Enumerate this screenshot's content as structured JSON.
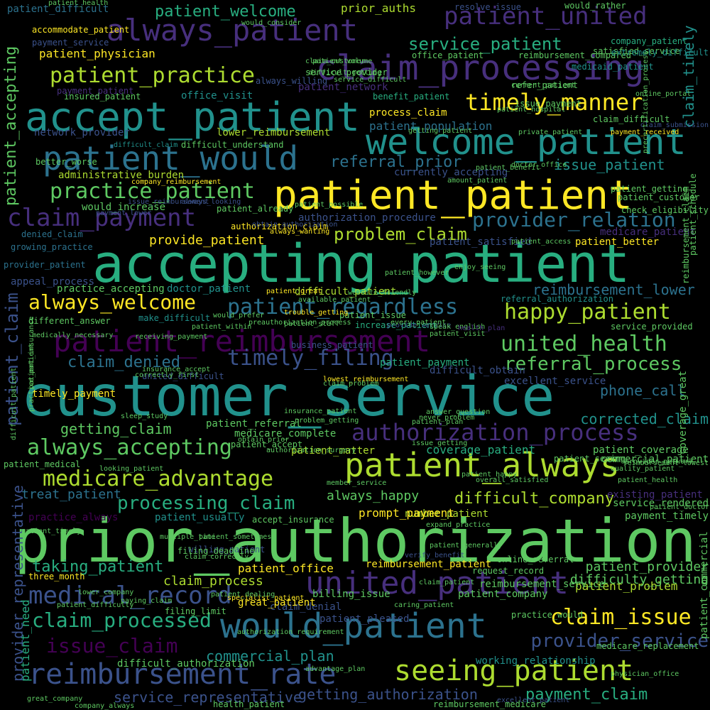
{
  "background": "#000000",
  "palette": [
    "#440154",
    "#472f7d",
    "#3b528b",
    "#2c728e",
    "#21918c",
    "#28ae80",
    "#5ec962",
    "#addc30",
    "#fde725"
  ],
  "words": [
    {
      "text": "customer_service",
      "color": "#21918c"
    },
    {
      "text": "prior_authorization",
      "color": "#5ec962"
    },
    {
      "text": "accepting_patient",
      "color": "#28ae80"
    },
    {
      "text": "patient_patient",
      "color": "#fde725"
    },
    {
      "text": "accept_patient",
      "color": "#21918c"
    },
    {
      "text": "claim_processing",
      "color": "#472f7d"
    },
    {
      "text": "welcome_patient",
      "color": "#21918c"
    },
    {
      "text": "patient_always",
      "color": "#addc30"
    },
    {
      "text": "patient_reimbursement",
      "color": "#440154"
    },
    {
      "text": "always_patient",
      "color": "#472f7d"
    },
    {
      "text": "would_patient",
      "color": "#2c728e"
    },
    {
      "text": "united_patient",
      "color": "#472f7d"
    },
    {
      "text": "reimbursement_rate",
      "color": "#3b528b"
    },
    {
      "text": "patient_would",
      "color": "#2c728e"
    },
    {
      "text": "seeing_patient",
      "color": "#addc30"
    },
    {
      "text": "patient_united",
      "color": "#472f7d"
    },
    {
      "text": "authorization_process",
      "color": "#472f7d"
    },
    {
      "text": "medical_record",
      "color": "#3b528b"
    },
    {
      "text": "timely_manner",
      "color": "#fde725"
    },
    {
      "text": "claim_payment",
      "color": "#472f7d"
    },
    {
      "text": "medicare_advantage",
      "color": "#addc30"
    },
    {
      "text": "practice_patient",
      "color": "#5ec962"
    },
    {
      "text": "patient_practice",
      "color": "#addc30"
    },
    {
      "text": "always_accepting",
      "color": "#5ec962"
    },
    {
      "text": "happy_patient",
      "color": "#addc30"
    },
    {
      "text": "claim_issue",
      "color": "#fde725"
    },
    {
      "text": "timely_filing",
      "color": "#3b528b"
    },
    {
      "text": "united_health",
      "color": "#5ec962"
    },
    {
      "text": "patient_regardless",
      "color": "#2c728e"
    },
    {
      "text": "claim_processed",
      "color": "#28ae80"
    },
    {
      "text": "always_welcome",
      "color": "#fde725"
    },
    {
      "text": "provider_relation",
      "color": "#2c728e"
    },
    {
      "text": "processing_claim",
      "color": "#28ae80"
    },
    {
      "text": "referral_process",
      "color": "#5ec962"
    },
    {
      "text": "provider_service",
      "color": "#3b528b"
    },
    {
      "text": "service_patient",
      "color": "#28ae80"
    },
    {
      "text": "issue_claim",
      "color": "#440154"
    },
    {
      "text": "taking_patient",
      "color": "#28ae80"
    },
    {
      "text": "problem_claim",
      "color": "#addc30"
    },
    {
      "text": "patient_welcome",
      "color": "#28ae80"
    },
    {
      "text": "referral_prior",
      "color": "#2c728e"
    },
    {
      "text": "reimbursement_lower",
      "color": "#2c728e"
    },
    {
      "text": "issue_patient",
      "color": "#21918c"
    },
    {
      "text": "getting_claim",
      "color": "#5ec962"
    },
    {
      "text": "phone_call",
      "color": "#2c728e"
    },
    {
      "text": "claim_denied",
      "color": "#2c728e"
    },
    {
      "text": "difficult_company",
      "color": "#addc30"
    },
    {
      "text": "service_representative",
      "color": "#3b528b"
    },
    {
      "text": "getting_authorization",
      "color": "#3b528b"
    },
    {
      "text": "payment_claim",
      "color": "#28ae80"
    },
    {
      "text": "corrected_claim",
      "color": "#21918c"
    },
    {
      "text": "commercial_plan",
      "color": "#21918c"
    },
    {
      "text": "provide_patient",
      "color": "#fde725"
    },
    {
      "text": "treat_patient",
      "color": "#2c728e"
    },
    {
      "text": "always_happy",
      "color": "#5ec962"
    },
    {
      "text": "patient_office",
      "color": "#fde725"
    },
    {
      "text": "claim_process",
      "color": "#addc30"
    },
    {
      "text": "patient_provider",
      "color": "#5ec962"
    },
    {
      "text": "patient_problem",
      "color": "#addc30"
    },
    {
      "text": "difficulty_getting",
      "color": "#5ec962"
    },
    {
      "text": "claim_denial",
      "color": "#3b528b"
    },
    {
      "text": "coverage_patient",
      "color": "#28ae80"
    },
    {
      "text": "patient_coverage",
      "color": "#5ec962"
    },
    {
      "text": "network_provider",
      "color": "#3b528b"
    },
    {
      "text": "lower_reimbursement",
      "color": "#addc30"
    },
    {
      "text": "patient_population",
      "color": "#2c728e"
    },
    {
      "text": "process_claim",
      "color": "#fde725"
    },
    {
      "text": "patient_physician",
      "color": "#fde725"
    },
    {
      "text": "patient_difficult",
      "color": "#2c728e"
    },
    {
      "text": "prior_auths",
      "color": "#addc30"
    },
    {
      "text": "resolve_issue",
      "color": "#3b528b"
    },
    {
      "text": "would_rather",
      "color": "#5ec962"
    },
    {
      "text": "company_patient",
      "color": "#28ae80"
    },
    {
      "text": "satisfied_service",
      "color": "#5ec962"
    },
    {
      "text": "medicare_patient",
      "color": "#472f7d"
    },
    {
      "text": "patient_better",
      "color": "#fde725"
    },
    {
      "text": "patient_satisfied",
      "color": "#3b528b"
    },
    {
      "text": "currently_accepting",
      "color": "#3b528b"
    },
    {
      "text": "authorization_procedure",
      "color": "#3b528b"
    },
    {
      "text": "office_visit",
      "color": "#21918c"
    },
    {
      "text": "patient_network",
      "color": "#472f7d"
    },
    {
      "text": "patient_accepting",
      "color": "#5ec962"
    },
    {
      "text": "patient_claim",
      "color": "#3b528b"
    },
    {
      "text": "provider_representative",
      "color": "#3b528b"
    },
    {
      "text": "patient_need",
      "color": "#28ae80"
    },
    {
      "text": "claim_timely",
      "color": "#21918c"
    },
    {
      "text": "administrative_burden",
      "color": "#addc30"
    },
    {
      "text": "would_increase",
      "color": "#5ec962"
    },
    {
      "text": "denied_claim",
      "color": "#2c728e"
    },
    {
      "text": "growing_practice",
      "color": "#2c728e"
    },
    {
      "text": "provider_patient",
      "color": "#2c728e"
    },
    {
      "text": "appeal_process",
      "color": "#3b528b"
    },
    {
      "text": "practice_accepting",
      "color": "#5ec962"
    },
    {
      "text": "doctor_patient",
      "color": "#21918c"
    },
    {
      "text": "timely_payment",
      "color": "#fde725"
    },
    {
      "text": "united_difficult",
      "color": "#3b528b"
    },
    {
      "text": "patient_referral",
      "color": "#5ec962"
    },
    {
      "text": "medicare_complete",
      "color": "#5ec962"
    },
    {
      "text": "patient_matter",
      "color": "#addc30"
    },
    {
      "text": "number_patient",
      "color": "#addc30"
    },
    {
      "text": "prompt_payment",
      "color": "#fde725"
    },
    {
      "text": "patient_usually",
      "color": "#21918c"
    },
    {
      "text": "reimbursement_patient",
      "color": "#fde725"
    },
    {
      "text": "great_patient",
      "color": "#fde725"
    },
    {
      "text": "patient_pleased",
      "color": "#3b528b"
    },
    {
      "text": "billing_issue",
      "color": "#5ec962"
    },
    {
      "text": "difficult_authorization",
      "color": "#5ec962"
    },
    {
      "text": "working_relationship",
      "color": "#21918c"
    },
    {
      "text": "commercial_patient",
      "color": "#5ec962"
    },
    {
      "text": "existing_patient",
      "color": "#472f7d"
    },
    {
      "text": "payment_timely",
      "color": "#5ec962"
    },
    {
      "text": "service_rendered",
      "color": "#5ec962"
    },
    {
      "text": "patient_company",
      "color": "#5ec962"
    },
    {
      "text": "reimbursement_service",
      "color": "#5ec962"
    },
    {
      "text": "practice_always",
      "color": "#440154"
    },
    {
      "text": "authorization_claim",
      "color": "#fde725"
    },
    {
      "text": "make_difficult",
      "color": "#21918c"
    },
    {
      "text": "patient_already",
      "color": "#5ec962"
    },
    {
      "text": "difficult_patient",
      "color": "#addc30"
    },
    {
      "text": "patient_issue",
      "color": "#5ec962"
    },
    {
      "text": "increase_patient",
      "color": "#28ae80"
    },
    {
      "text": "patient_payment",
      "color": "#28ae80"
    },
    {
      "text": "difficult_obtain",
      "color": "#3b528b"
    },
    {
      "text": "excellent_service",
      "color": "#3b528b"
    },
    {
      "text": "service_provided",
      "color": "#5ec962"
    },
    {
      "text": "patient_customer",
      "color": "#5ec962"
    },
    {
      "text": "check_eligibility",
      "color": "#5ec962"
    },
    {
      "text": "claim_difficult",
      "color": "#5ec962"
    },
    {
      "text": "referral_authorization",
      "color": "#21918c"
    },
    {
      "text": "benefit_patient",
      "color": "#28ae80"
    },
    {
      "text": "refer_patient",
      "color": "#5ec962"
    },
    {
      "text": "medicaid_patient",
      "color": "#21918c"
    },
    {
      "text": "issue_payment",
      "color": "#5ec962"
    },
    {
      "text": "patient_getting",
      "color": "#5ec962"
    },
    {
      "text": "claim_submission",
      "color": "#3b528b"
    },
    {
      "text": "three_month",
      "color": "#fde725"
    },
    {
      "text": "lower_company",
      "color": "#5ec962"
    },
    {
      "text": "patient_medical",
      "color": "#5ec962"
    },
    {
      "text": "looking_patient",
      "color": "#5ec962"
    },
    {
      "text": "company_reimbursement",
      "color": "#fde725"
    },
    {
      "text": "patient_health",
      "color": "#5ec962"
    },
    {
      "text": "accommodate_patient",
      "color": "#fde725"
    },
    {
      "text": "payment_service",
      "color": "#3b528b"
    },
    {
      "text": "payment_patient",
      "color": "#472f7d"
    },
    {
      "text": "insured_patient",
      "color": "#5ec962"
    },
    {
      "text": "always_willing",
      "color": "#3b528b"
    },
    {
      "text": "service_provider",
      "color": "#5ec962"
    },
    {
      "text": "office_patient",
      "color": "#5ec962"
    },
    {
      "text": "reimbursement_compared",
      "color": "#5ec962"
    },
    {
      "text": "extremely_difficult",
      "color": "#21918c"
    },
    {
      "text": "better_worse",
      "color": "#5ec962"
    },
    {
      "text": "difficult_understand",
      "color": "#5ec962"
    },
    {
      "text": "difficult_claim",
      "color": "#21918c"
    },
    {
      "text": "getting_patient",
      "color": "#5ec962"
    },
    {
      "text": "private_patient",
      "color": "#5ec962"
    },
    {
      "text": "payment_received",
      "color": "#fde725"
    },
    {
      "text": "amount_patient",
      "color": "#5ec962"
    },
    {
      "text": "different_answer",
      "color": "#5ec962"
    },
    {
      "text": "patient_accept",
      "color": "#5ec962"
    },
    {
      "text": "obtain_prior",
      "color": "#5ec962"
    },
    {
      "text": "authorization_surgery",
      "color": "#5ec962"
    },
    {
      "text": "patient_timely",
      "color": "#5ec962"
    },
    {
      "text": "patient_sometimes",
      "color": "#5ec962"
    },
    {
      "text": "accept_insurance",
      "color": "#5ec962"
    },
    {
      "text": "willing_patient",
      "color": "#3b528b"
    },
    {
      "text": "filing_deadline",
      "color": "#5ec962"
    },
    {
      "text": "online_referral",
      "color": "#5ec962"
    },
    {
      "text": "request_record",
      "color": "#5ec962"
    },
    {
      "text": "filing_limit",
      "color": "#5ec962"
    },
    {
      "text": "specialist_patient",
      "color": "#fde725"
    },
    {
      "text": "practice_would",
      "color": "#5ec962"
    },
    {
      "text": "medicare_replacement",
      "color": "#5ec962"
    },
    {
      "text": "physician_office",
      "color": "#5ec962"
    },
    {
      "text": "advantage_plan",
      "color": "#5ec962"
    },
    {
      "text": "great_company",
      "color": "#5ec962"
    },
    {
      "text": "company_always",
      "color": "#5ec962"
    },
    {
      "text": "health_patient",
      "color": "#5ec962"
    },
    {
      "text": "reimbursement_medicare",
      "color": "#5ec962"
    },
    {
      "text": "excellent_patient",
      "color": "#3b528b"
    },
    {
      "text": "paying_claim",
      "color": "#5ec962"
    },
    {
      "text": "patient_difficulty",
      "color": "#5ec962"
    },
    {
      "text": "claim_patient",
      "color": "#5ec962"
    },
    {
      "text": "patient_health",
      "color": "#5ec962"
    },
    {
      "text": "patient_seeing",
      "color": "#5ec962"
    },
    {
      "text": "quality_patient",
      "color": "#5ec962"
    },
    {
      "text": "provider_network",
      "color": "#5ec962"
    },
    {
      "text": "would_consider",
      "color": "#5ec962"
    },
    {
      "text": "patient_volume",
      "color": "#5ec962"
    },
    {
      "text": "claim_customer",
      "color": "#5ec962"
    },
    {
      "text": "difficult_getting",
      "color": "#5ec962"
    },
    {
      "text": "service_difficult",
      "color": "#5ec962"
    },
    {
      "text": "current_patient",
      "color": "#5ec962"
    },
    {
      "text": "patient_hospital",
      "color": "#5ec962"
    },
    {
      "text": "coverage_great",
      "color": "#5ec962"
    },
    {
      "text": "patient_commercial",
      "color": "#5ec962"
    },
    {
      "text": "reimbursement_claim",
      "color": "#5ec962"
    },
    {
      "text": "patient_schedule",
      "color": "#5ec962"
    },
    {
      "text": "difficult_patient",
      "color": "#5ec962"
    },
    {
      "text": "practice_patient",
      "color": "#5ec962"
    },
    {
      "text": "patient_insurance",
      "color": "#5ec962"
    },
    {
      "text": "trouble_getting",
      "color": "#fde725"
    },
    {
      "text": "provide_service",
      "color": "#3b528b"
    },
    {
      "text": "speak_english",
      "color": "#5ec962"
    },
    {
      "text": "health_plan",
      "color": "#472f7d"
    },
    {
      "text": "lowest_reimbursement",
      "color": "#fde725"
    },
    {
      "text": "insurance_patient",
      "color": "#5ec962"
    },
    {
      "text": "problem_getting",
      "color": "#5ec962"
    },
    {
      "text": "claim_problem",
      "color": "#5ec962"
    },
    {
      "text": "patient_happy",
      "color": "#5ec962"
    },
    {
      "text": "overall_satisfied",
      "color": "#5ec962"
    },
    {
      "text": "answer_question",
      "color": "#5ec962"
    },
    {
      "text": "patient_plan",
      "color": "#5ec962"
    },
    {
      "text": "never_problem",
      "color": "#5ec962"
    },
    {
      "text": "issue_getting",
      "color": "#5ec962"
    },
    {
      "text": "member_service",
      "color": "#5ec962"
    },
    {
      "text": "expand_practice",
      "color": "#5ec962"
    },
    {
      "text": "sleep_study",
      "color": "#5ec962"
    },
    {
      "text": "multiple_time",
      "color": "#5ec962"
    },
    {
      "text": "patient_generally",
      "color": "#5ec962"
    },
    {
      "text": "caring_patient",
      "color": "#5ec962"
    },
    {
      "text": "verify_benefit",
      "color": "#3b528b"
    },
    {
      "text": "reimbursement_lowest",
      "color": "#5ec962"
    },
    {
      "text": "patient_doctor",
      "color": "#5ec962"
    },
    {
      "text": "insurance_accept",
      "color": "#5ec962"
    },
    {
      "text": "correctly_first",
      "color": "#5ec962"
    },
    {
      "text": "medically_necessary",
      "color": "#5ec962"
    },
    {
      "text": "patient_within",
      "color": "#5ec962"
    },
    {
      "text": "receiving_payment",
      "color": "#5ec962"
    },
    {
      "text": "business_patient",
      "color": "#3b528b"
    },
    {
      "text": "payment_lower",
      "color": "#3b528b"
    },
    {
      "text": "issue_reimbursement",
      "color": "#3b528b"
    },
    {
      "text": "always_looking",
      "color": "#3b528b"
    },
    {
      "text": "obtain_authorization",
      "color": "#3b528b"
    },
    {
      "text": "always_wanting",
      "color": "#fde725"
    },
    {
      "text": "patient_however",
      "color": "#5ec962"
    },
    {
      "text": "patient_great",
      "color": "#fde725"
    },
    {
      "text": "available_patient",
      "color": "#5ec962"
    },
    {
      "text": "website_friendly",
      "color": "#5ec962"
    },
    {
      "text": "enjoy_seeing",
      "color": "#5ec962"
    },
    {
      "text": "every_patient",
      "color": "#5ec962"
    },
    {
      "text": "patient_staff",
      "color": "#5ec962"
    },
    {
      "text": "preauthorization_process",
      "color": "#5ec962"
    },
    {
      "text": "patient_visit",
      "color": "#5ec962"
    },
    {
      "text": "would_prefer",
      "color": "#5ec962"
    },
    {
      "text": "patient_benefit",
      "color": "#5ec962"
    },
    {
      "text": "patient_possible",
      "color": "#5ec962"
    },
    {
      "text": "doctor_office",
      "color": "#5ec962"
    },
    {
      "text": "patient_access",
      "color": "#5ec962"
    },
    {
      "text": "online_portal",
      "color": "#5ec962"
    },
    {
      "text": "precertification_process",
      "color": "#5ec962"
    },
    {
      "text": "claim_correctly",
      "color": "#5ec962"
    },
    {
      "text": "patient_dealing",
      "color": "#5ec962"
    },
    {
      "text": "authorization_requirement",
      "color": "#5ec962"
    }
  ]
}
